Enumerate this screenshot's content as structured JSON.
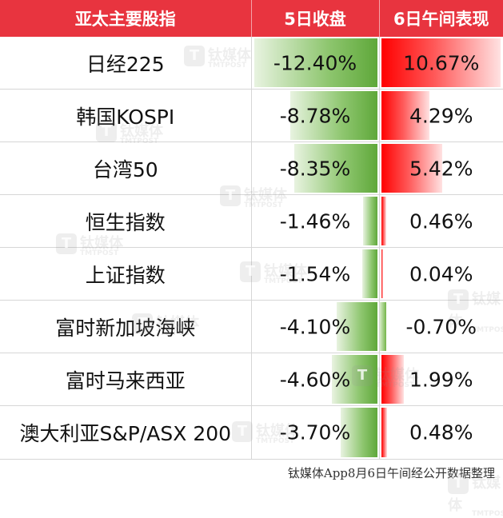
{
  "chart_data": {
    "type": "table",
    "columns": [
      "亚太主要股指",
      "5日收盘",
      "6日午间表现"
    ],
    "rows": [
      {
        "name": "日经225",
        "close5": -12.4,
        "close5_label": "-12.40%",
        "noon6": 10.67,
        "noon6_label": "10.67%"
      },
      {
        "name": "韩国KOSPI",
        "close5": -8.78,
        "close5_label": "-8.78%",
        "noon6": 4.29,
        "noon6_label": "4.29%"
      },
      {
        "name": "台湾50",
        "close5": -8.35,
        "close5_label": "-8.35%",
        "noon6": 5.42,
        "noon6_label": "5.42%"
      },
      {
        "name": "恒生指数",
        "close5": -1.46,
        "close5_label": "-1.46%",
        "noon6": 0.46,
        "noon6_label": "0.46%"
      },
      {
        "name": "上证指数",
        "close5": -1.54,
        "close5_label": "-1.54%",
        "noon6": 0.04,
        "noon6_label": "0.04%"
      },
      {
        "name": "富时新加坡海峡",
        "close5": -4.1,
        "close5_label": "-4.10%",
        "noon6": -0.7,
        "noon6_label": "-0.70%"
      },
      {
        "name": "富时马来西亚",
        "close5": -4.6,
        "close5_label": "-4.60%",
        "noon6": 1.99,
        "noon6_label": "1.99%"
      },
      {
        "name": "澳大利亚S&P/ASX 200",
        "close5": -3.7,
        "close5_label": "-3.70%",
        "noon6": 0.48,
        "noon6_label": "0.48%"
      }
    ],
    "source": "钛媒体App8月6日午间经公开数据整理",
    "colors": {
      "header_bg": "#e8343f",
      "negative_bar": "#5fa83a",
      "positive_bar": "#ff0000"
    }
  },
  "watermark": {
    "logo": "T",
    "text": "钛媒体",
    "sub": "TMTPOST"
  }
}
